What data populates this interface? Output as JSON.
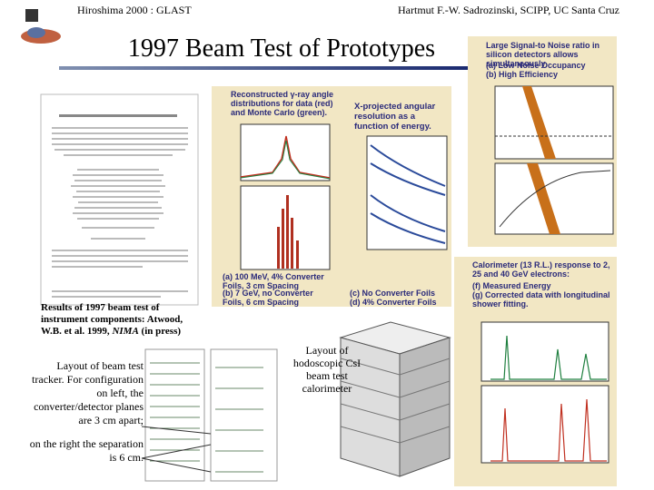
{
  "header": {
    "left": "Hiroshima 2000 : GLAST",
    "right": "Hartmut F.-W. Sadrozinski, SCIPP, UC Santa Cruz"
  },
  "title": "1997 Beam Test of Prototypes",
  "paper_caption": {
    "text": "Results of 1997 beam test of instrument components: Atwood, W.B. et al. 1999,",
    "journal": "NIMA",
    "suffix": "(in press)"
  },
  "tracker_caption": "Layout of beam test tracker. For configuration on left, the converter/detector planes are 3 cm apart;",
  "tracker_caption_2": "on the right the separation is 6 cm.",
  "calorimeter_caption": "Layout of hodoscopic CsI beam test calorimeter",
  "figures": {
    "angular": {
      "heading": "Reconstructed γ-ray angle distributions for data (red) and Monte Carlo (green).",
      "side": "X-projected angular resolution as a function of energy.",
      "captions": [
        "(a) 100 MeV, 4% Converter Foils, 3 cm Spacing",
        "(b) 7 GeV, no Converter Foils, 6 cm Spacing",
        "(c) No Converter Foils",
        "(d) 4% Converter Foils"
      ]
    },
    "snr": {
      "heading": "Large Signal-to Noise ratio in silicon detectors allows simultaneously",
      "items": [
        "(a) Low Noise Occupancy",
        "(b) High Efficiency"
      ]
    },
    "calorimeter": {
      "heading": "Calorimeter (13 R.L.) response to 2, 25 and 40 GeV electrons:",
      "items": [
        "(f) Measured Energy",
        "(g) Corrected data with longitudinal shower fitting."
      ]
    }
  }
}
